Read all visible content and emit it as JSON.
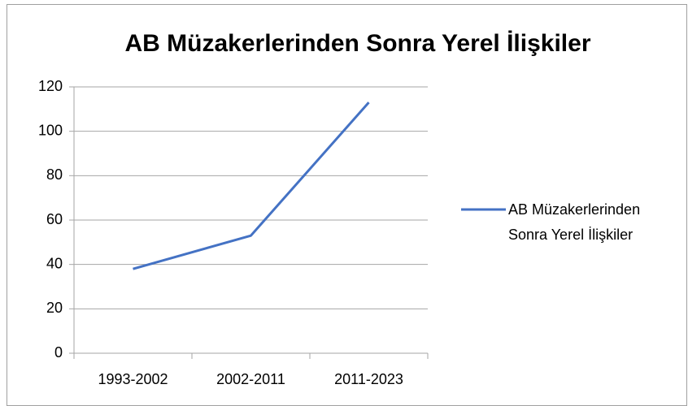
{
  "chart_data": {
    "type": "line",
    "title": "AB Müzakerlerinden Sonra Yerel İlişkiler",
    "categories": [
      "1993-2002",
      "2002-2011",
      "2011-2023"
    ],
    "series": [
      {
        "name": "AB Müzakerlerinden Sonra Yerel İlişkiler",
        "color": "#4472c4",
        "values": [
          38,
          53,
          113
        ]
      }
    ],
    "ylim": [
      0,
      120
    ],
    "yticks": [
      0,
      20,
      40,
      60,
      80,
      100,
      120
    ],
    "grid": true,
    "legend": "right"
  }
}
